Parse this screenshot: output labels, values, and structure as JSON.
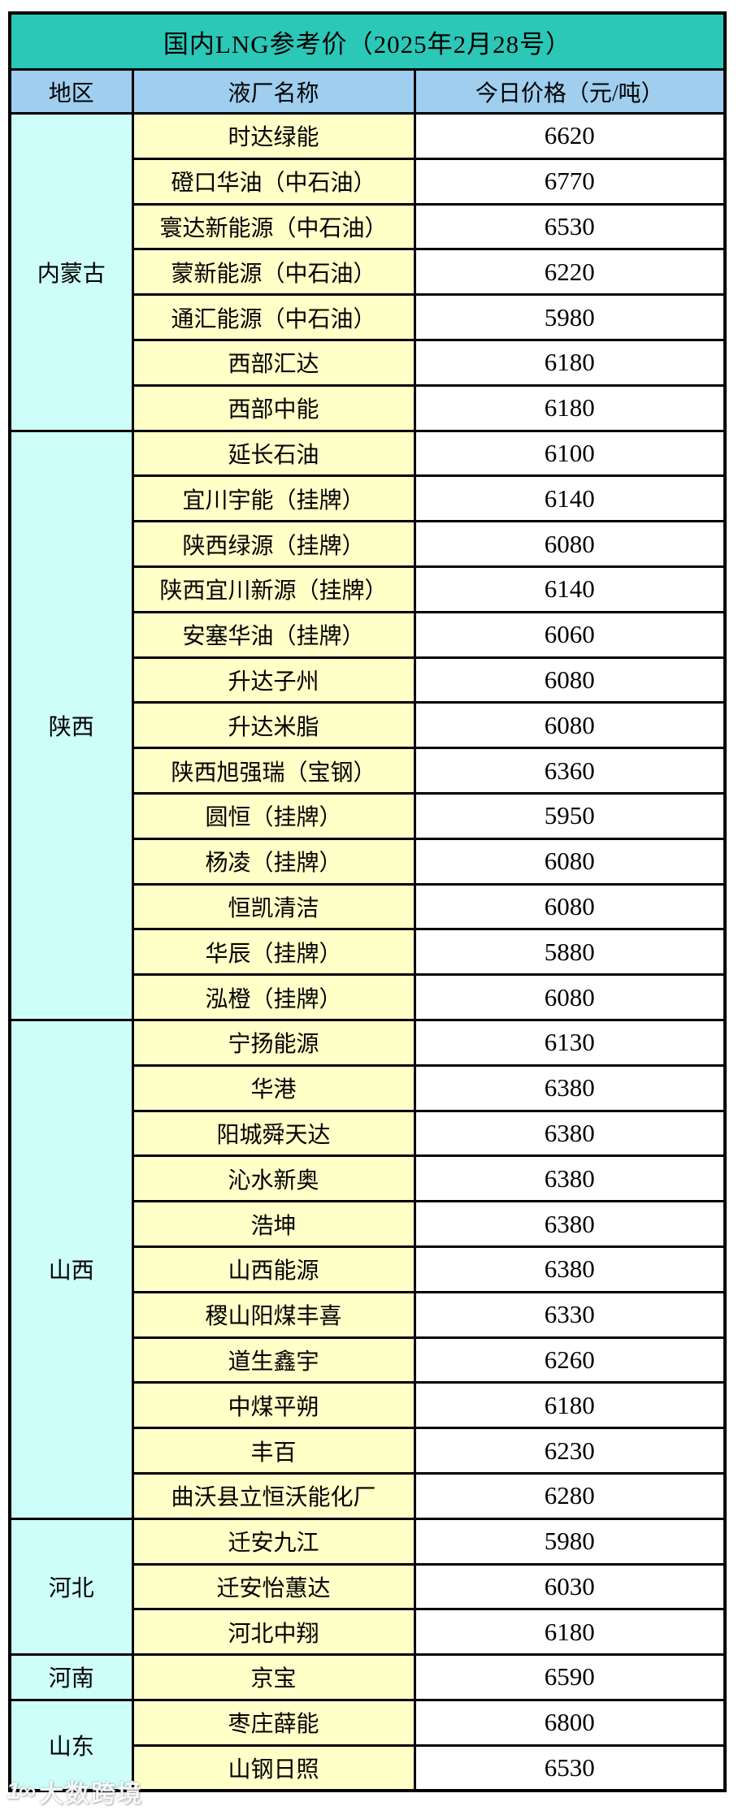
{
  "header": {
    "title": "国内LNG参考价（2025年2月28号）"
  },
  "watermark": {
    "logo": "1∞",
    "text": "大数跨境"
  },
  "colors": {
    "title_bar": "#2bc7b7",
    "column_header": "#9fceef",
    "region_column": "#cdfefa",
    "plant_column": "#ffffc8",
    "price_column": "#ffffff",
    "grid_border": "#000000",
    "text": "#000000"
  },
  "table": {
    "headers": {
      "region": "地区",
      "plant": "液厂名称",
      "price": "今日价格（元/吨）"
    },
    "regions": [
      {
        "name": "内蒙古",
        "rows": [
          {
            "plant": "时达绿能",
            "price": "6620"
          },
          {
            "plant": "磴口华油（中石油）",
            "price": "6770"
          },
          {
            "plant": "寰达新能源（中石油）",
            "price": "6530"
          },
          {
            "plant": "蒙新能源（中石油）",
            "price": "6220"
          },
          {
            "plant": "通汇能源（中石油）",
            "price": "5980"
          },
          {
            "plant": "西部汇达",
            "price": "6180"
          },
          {
            "plant": "西部中能",
            "price": "6180"
          }
        ]
      },
      {
        "name": "陕西",
        "rows": [
          {
            "plant": "延长石油",
            "price": "6100"
          },
          {
            "plant": "宜川宇能（挂牌）",
            "price": "6140"
          },
          {
            "plant": "陕西绿源（挂牌）",
            "price": "6080"
          },
          {
            "plant": "陕西宜川新源（挂牌）",
            "price": "6140"
          },
          {
            "plant": "安塞华油（挂牌）",
            "price": "6060"
          },
          {
            "plant": "升达子州",
            "price": "6080"
          },
          {
            "plant": "升达米脂",
            "price": "6080"
          },
          {
            "plant": "陕西旭强瑞（宝钢）",
            "price": "6360"
          },
          {
            "plant": "圆恒（挂牌）",
            "price": "5950"
          },
          {
            "plant": "杨凌（挂牌）",
            "price": "6080"
          },
          {
            "plant": "恒凯清洁",
            "price": "6080"
          },
          {
            "plant": "华辰（挂牌）",
            "price": "5880"
          },
          {
            "plant": "泓橙（挂牌）",
            "price": "6080"
          }
        ]
      },
      {
        "name": "山西",
        "rows": [
          {
            "plant": "宁扬能源",
            "price": "6130"
          },
          {
            "plant": "华港",
            "price": "6380"
          },
          {
            "plant": "阳城舜天达",
            "price": "6380"
          },
          {
            "plant": "沁水新奥",
            "price": "6380"
          },
          {
            "plant": "浩坤",
            "price": "6380"
          },
          {
            "plant": "山西能源",
            "price": "6380"
          },
          {
            "plant": "稷山阳煤丰喜",
            "price": "6330"
          },
          {
            "plant": "道生鑫宇",
            "price": "6260"
          },
          {
            "plant": "中煤平朔",
            "price": "6180"
          },
          {
            "plant": "丰百",
            "price": "6230"
          },
          {
            "plant": "曲沃县立恒沃能化厂",
            "price": "6280"
          }
        ]
      },
      {
        "name": "河北",
        "rows": [
          {
            "plant": "迁安九江",
            "price": "5980"
          },
          {
            "plant": "迁安怡蕙达",
            "price": "6030"
          },
          {
            "plant": "河北中翔",
            "price": "6180"
          }
        ]
      },
      {
        "name": "河南",
        "rows": [
          {
            "plant": "京宝",
            "price": "6590"
          }
        ]
      },
      {
        "name": "山东",
        "rows": [
          {
            "plant": "枣庄薛能",
            "price": "6800"
          },
          {
            "plant": "山钢日照",
            "price": "6530"
          }
        ]
      }
    ]
  },
  "chart_data": {
    "type": "table",
    "title": "国内LNG参考价（2025年2月28号）",
    "columns": [
      "地区",
      "液厂名称",
      "今日价格（元/吨）"
    ],
    "rows": [
      [
        "内蒙古",
        "时达绿能",
        6620
      ],
      [
        "内蒙古",
        "磴口华油（中石油）",
        6770
      ],
      [
        "内蒙古",
        "寰达新能源（中石油）",
        6530
      ],
      [
        "内蒙古",
        "蒙新能源（中石油）",
        6220
      ],
      [
        "内蒙古",
        "通汇能源（中石油）",
        5980
      ],
      [
        "内蒙古",
        "西部汇达",
        6180
      ],
      [
        "内蒙古",
        "西部中能",
        6180
      ],
      [
        "陕西",
        "延长石油",
        6100
      ],
      [
        "陕西",
        "宜川宇能（挂牌）",
        6140
      ],
      [
        "陕西",
        "陕西绿源（挂牌）",
        6080
      ],
      [
        "陕西",
        "陕西宜川新源（挂牌）",
        6140
      ],
      [
        "陕西",
        "安塞华油（挂牌）",
        6060
      ],
      [
        "陕西",
        "升达子州",
        6080
      ],
      [
        "陕西",
        "升达米脂",
        6080
      ],
      [
        "陕西",
        "陕西旭强瑞（宝钢）",
        6360
      ],
      [
        "陕西",
        "圆恒（挂牌）",
        5950
      ],
      [
        "陕西",
        "杨凌（挂牌）",
        6080
      ],
      [
        "陕西",
        "恒凯清洁",
        6080
      ],
      [
        "陕西",
        "华辰（挂牌）",
        5880
      ],
      [
        "陕西",
        "泓橙（挂牌）",
        6080
      ],
      [
        "山西",
        "宁扬能源",
        6130
      ],
      [
        "山西",
        "华港",
        6380
      ],
      [
        "山西",
        "阳城舜天达",
        6380
      ],
      [
        "山西",
        "沁水新奥",
        6380
      ],
      [
        "山西",
        "浩坤",
        6380
      ],
      [
        "山西",
        "山西能源",
        6380
      ],
      [
        "山西",
        "稷山阳煤丰喜",
        6330
      ],
      [
        "山西",
        "道生鑫宇",
        6260
      ],
      [
        "山西",
        "中煤平朔",
        6180
      ],
      [
        "山西",
        "丰百",
        6230
      ],
      [
        "山西",
        "曲沃县立恒沃能化厂",
        6280
      ],
      [
        "河北",
        "迁安九江",
        5980
      ],
      [
        "河北",
        "迁安怡蕙达",
        6030
      ],
      [
        "河北",
        "河北中翔",
        6180
      ],
      [
        "河南",
        "京宝",
        6590
      ],
      [
        "山东",
        "枣庄薛能",
        6800
      ],
      [
        "山东",
        "山钢日照",
        6530
      ]
    ]
  }
}
